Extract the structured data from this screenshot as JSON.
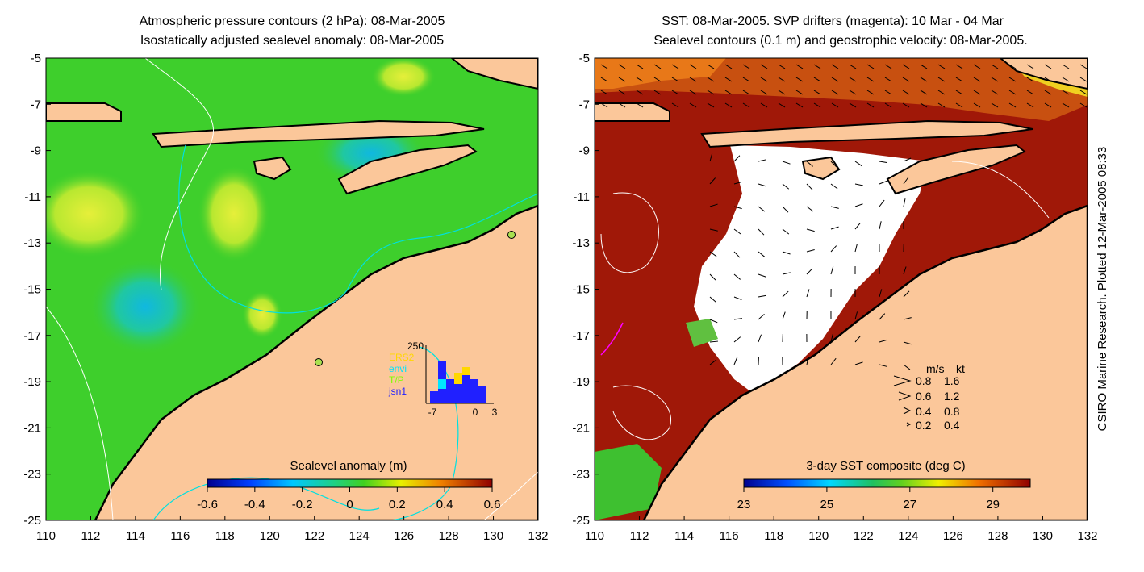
{
  "left_panel": {
    "title_line1": "Atmospheric pressure contours (2 hPa): 08-Mar-2005",
    "title_line2": "Isostatically adjusted sealevel anomaly: 08-Mar-2005",
    "colorbar_label": "Sealevel anomaly (m)",
    "colorbar_ticks": [
      "-0.6",
      "-0.4",
      "-0.2",
      "0",
      "0.2",
      "0.4",
      "0.6"
    ],
    "inset": {
      "ymax_label": "250",
      "legend": [
        {
          "label": "ERS2",
          "color": "#ffd700"
        },
        {
          "label": "envi",
          "color": "#00e5ff"
        },
        {
          "label": "T/P",
          "color": "#7fff00"
        },
        {
          "label": "jsn1",
          "color": "#2020ff"
        }
      ],
      "x_ticks": [
        "-7",
        "0",
        "3"
      ]
    }
  },
  "right_panel": {
    "title_line1": "SST: 08-Mar-2005. SVP drifters (magenta): 10 Mar - 04 Mar",
    "title_line2": "Sealevel contours (0.1 m) and geostrophic velocity: 08-Mar-2005.",
    "colorbar_label": "3-day SST composite (deg C)",
    "colorbar_ticks": [
      "23",
      "25",
      "27",
      "29"
    ],
    "velocity_key": {
      "header_ms": "m/s",
      "header_kt": "kt",
      "rows": [
        {
          "ms": "0.8",
          "kt": "1.6"
        },
        {
          "ms": "0.6",
          "kt": "1.2"
        },
        {
          "ms": "0.4",
          "kt": "0.8"
        },
        {
          "ms": "0.2",
          "kt": "0.4"
        }
      ]
    }
  },
  "axes": {
    "x_ticks": [
      "110",
      "112",
      "114",
      "116",
      "118",
      "120",
      "122",
      "124",
      "126",
      "128",
      "130",
      "132"
    ],
    "y_ticks": [
      "-5",
      "-7",
      "-9",
      "-11",
      "-13",
      "-15",
      "-17",
      "-19",
      "-21",
      "-23",
      "-25"
    ]
  },
  "side_note": "CSIRO Marine Research. Plotted 12-Mar-2005 08:33",
  "colors": {
    "land": "#fbc79a",
    "ocean_green": "#3ecf2c",
    "sst_red": "#a01808",
    "coastline": "#000000"
  }
}
